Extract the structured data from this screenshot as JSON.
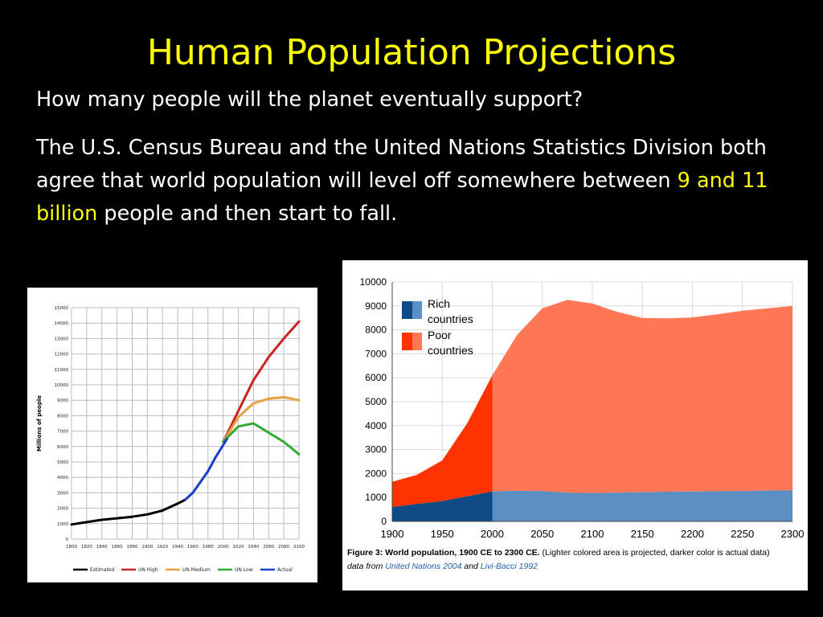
{
  "slide": {
    "title": "Human Population Projections",
    "question": "How many people will the planet eventually support?",
    "body_pre": "The U.S. Census Bureau and the United Nations Statistics Division both agree that world population will level off somewhere between ",
    "body_highlight": "9 and 11 billion",
    "body_post": " people and then start to fall."
  },
  "colors": {
    "title": "#ffff00",
    "highlight": "#ffff00",
    "estimated": "#000000",
    "un_high": "#cc2222",
    "un_medium": "#e8a040",
    "un_low": "#33aa33",
    "actual": "#1a3fcc",
    "rich_actual": "#0d4a86",
    "rich_projected": "#5b8fc4",
    "poor_actual": "#ff3300",
    "poor_projected": "#ff7755"
  },
  "chart_data": [
    {
      "type": "line",
      "title": "",
      "xlabel": "",
      "ylabel": "Millions of people",
      "xlim": [
        1800,
        2100
      ],
      "ylim": [
        0,
        15000
      ],
      "x_ticks": [
        "1800",
        "1820",
        "1840",
        "1860",
        "1880",
        "1900",
        "1920",
        "1940",
        "1960",
        "1980",
        "2000",
        "2020",
        "2040",
        "2060",
        "2080",
        "2100"
      ],
      "y_ticks": [
        "0",
        "1000",
        "2000",
        "3000",
        "4000",
        "5000",
        "6000",
        "7000",
        "8000",
        "9000",
        "10000",
        "11000",
        "12000",
        "13000",
        "14000",
        "15000"
      ],
      "grid": true,
      "legend_position": "bottom",
      "series": [
        {
          "name": "Estimated",
          "color": "#000000",
          "points": [
            [
              1800,
              950
            ],
            [
              1820,
              1100
            ],
            [
              1840,
              1250
            ],
            [
              1860,
              1350
            ],
            [
              1880,
              1450
            ],
            [
              1900,
              1600
            ],
            [
              1920,
              1850
            ],
            [
              1940,
              2300
            ],
            [
              1950,
              2550
            ]
          ]
        },
        {
          "name": "UN High",
          "color": "#cc2222",
          "points": [
            [
              2000,
              6300
            ],
            [
              2020,
              8300
            ],
            [
              2040,
              10300
            ],
            [
              2060,
              11800
            ],
            [
              2080,
              13000
            ],
            [
              2100,
              14100
            ]
          ]
        },
        {
          "name": "UN Medium",
          "color": "#e8a040",
          "points": [
            [
              2000,
              6300
            ],
            [
              2020,
              7900
            ],
            [
              2040,
              8800
            ],
            [
              2060,
              9100
            ],
            [
              2080,
              9200
            ],
            [
              2100,
              9000
            ]
          ]
        },
        {
          "name": "UN Low",
          "color": "#33aa33",
          "points": [
            [
              2000,
              6300
            ],
            [
              2020,
              7300
            ],
            [
              2040,
              7500
            ],
            [
              2060,
              6900
            ],
            [
              2080,
              6300
            ],
            [
              2100,
              5500
            ]
          ]
        },
        {
          "name": "Actual",
          "color": "#1a3fcc",
          "points": [
            [
              1950,
              2550
            ],
            [
              1960,
              3000
            ],
            [
              1970,
              3700
            ],
            [
              1980,
              4400
            ],
            [
              1990,
              5300
            ],
            [
              2000,
              6100
            ],
            [
              2005,
              6500
            ]
          ]
        }
      ]
    },
    {
      "type": "area",
      "title": "",
      "xlim": [
        1900,
        2300
      ],
      "ylim": [
        0,
        10000
      ],
      "x_ticks": [
        "1900",
        "1950",
        "2000",
        "2050",
        "2100",
        "2150",
        "2200",
        "2250",
        "2300"
      ],
      "y_ticks": [
        "0",
        "1000",
        "2000",
        "3000",
        "4000",
        "5000",
        "6000",
        "7000",
        "8000",
        "9000",
        "10000"
      ],
      "grid": true,
      "legend_position": "top-left",
      "legend": [
        {
          "label_line1": "Rich",
          "label_line2": "countries"
        },
        {
          "label_line1": "Poor",
          "label_line2": "countries"
        }
      ],
      "x": [
        1900,
        1925,
        1950,
        1975,
        2000,
        2025,
        2050,
        2075,
        2100,
        2125,
        2150,
        2175,
        2200,
        2225,
        2250,
        2275,
        2300
      ],
      "series": [
        {
          "name": "Rich countries",
          "values": [
            600,
            730,
            850,
            1050,
            1250,
            1280,
            1270,
            1200,
            1180,
            1200,
            1220,
            1240,
            1250,
            1260,
            1270,
            1290,
            1300
          ]
        },
        {
          "name": "Total",
          "values": [
            1650,
            1950,
            2550,
            4100,
            6100,
            7800,
            8900,
            9250,
            9100,
            8750,
            8500,
            8480,
            8520,
            8650,
            8800,
            8900,
            9000
          ]
        }
      ],
      "actual_until": 2000,
      "caption": {
        "figure": "Figure 3: World population, 1900 CE to 2300 CE.",
        "note": " (Lighter colored area is projected, darker color is actual data)",
        "source_pre": "data from ",
        "source_link1": "United Nations 2004",
        "source_mid": " and ",
        "source_link2": "Livi-Bacci 1992"
      }
    }
  ]
}
